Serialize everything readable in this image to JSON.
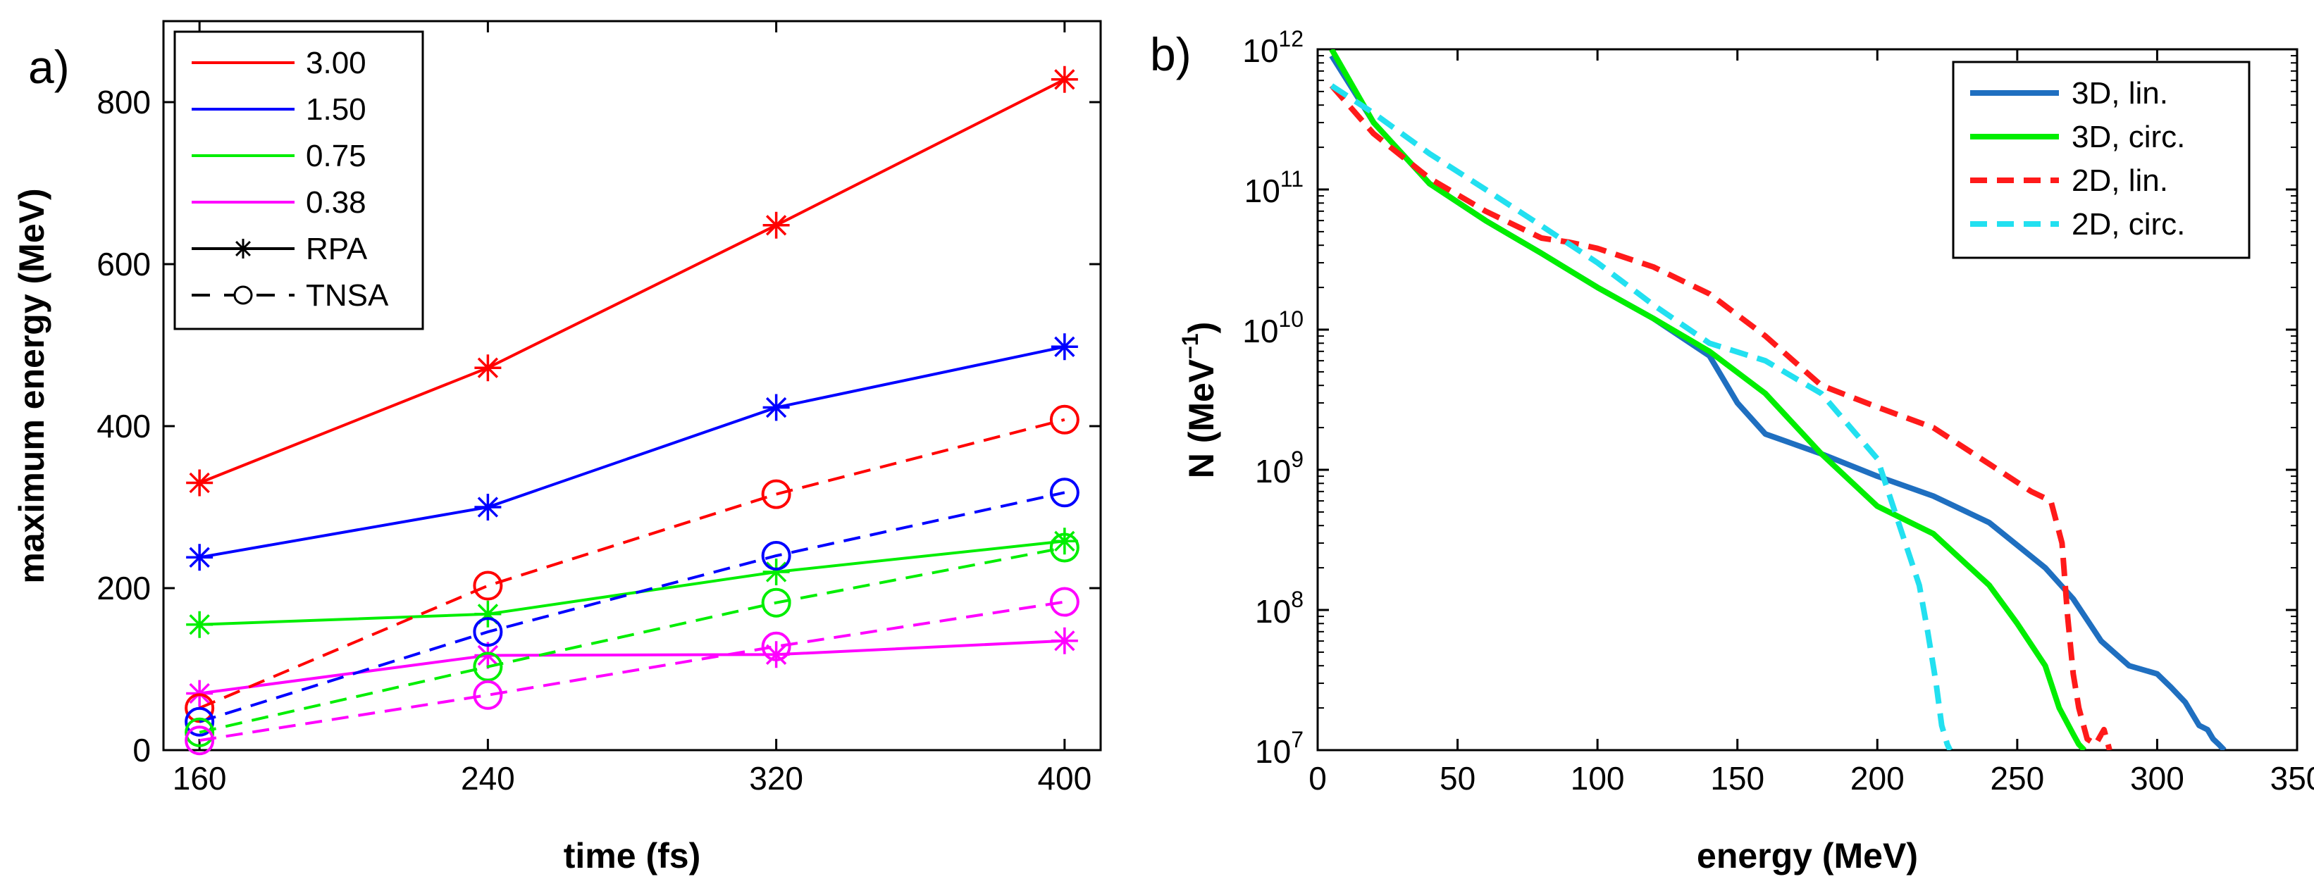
{
  "chart_data": [
    {
      "type": "line",
      "panel_label": "a)",
      "xlabel": "time (fs)",
      "ylabel": "maximum energy (MeV)",
      "xlim": [
        150,
        410
      ],
      "ylim": [
        0,
        900
      ],
      "xticks": [
        160,
        240,
        320,
        400
      ],
      "yticks": [
        0,
        200,
        400,
        600,
        800
      ],
      "legend_position": "top-left",
      "legend": [
        {
          "label": "3.00",
          "color": "#ff0000",
          "style": "solid",
          "marker": ""
        },
        {
          "label": "1.50",
          "color": "#0000ff",
          "style": "solid",
          "marker": ""
        },
        {
          "label": "0.75",
          "color": "#00ee00",
          "style": "solid",
          "marker": ""
        },
        {
          "label": "0.38",
          "color": "#ff00ff",
          "style": "solid",
          "marker": ""
        },
        {
          "label": "RPA",
          "color": "#000000",
          "style": "solid",
          "marker": "star"
        },
        {
          "label": "TNSA",
          "color": "#000000",
          "style": "dashed",
          "marker": "circle"
        }
      ],
      "x": [
        160,
        240,
        320,
        400
      ],
      "series": [
        {
          "name": "3.00 RPA",
          "color": "#ff0000",
          "style": "solid",
          "marker": "star",
          "values": [
            330,
            472,
            648,
            828
          ]
        },
        {
          "name": "1.50 RPA",
          "color": "#0000ff",
          "style": "solid",
          "marker": "star",
          "values": [
            238,
            300,
            423,
            498
          ]
        },
        {
          "name": "0.75 RPA",
          "color": "#00ee00",
          "style": "solid",
          "marker": "star",
          "values": [
            155,
            168,
            220,
            258
          ]
        },
        {
          "name": "0.38 RPA",
          "color": "#ff00ff",
          "style": "solid",
          "marker": "star",
          "values": [
            70,
            117,
            118,
            135
          ]
        },
        {
          "name": "3.00 TNSA",
          "color": "#ff0000",
          "style": "dashed",
          "marker": "circle",
          "values": [
            52,
            203,
            316,
            408
          ]
        },
        {
          "name": "1.50 TNSA",
          "color": "#0000ff",
          "style": "dashed",
          "marker": "circle",
          "values": [
            35,
            146,
            240,
            318
          ]
        },
        {
          "name": "0.75 TNSA",
          "color": "#00ee00",
          "style": "dashed",
          "marker": "circle",
          "values": [
            22,
            103,
            182,
            250
          ]
        },
        {
          "name": "0.38 TNSA",
          "color": "#ff00ff",
          "style": "dashed",
          "marker": "circle",
          "values": [
            12,
            68,
            128,
            183
          ]
        }
      ]
    },
    {
      "type": "line",
      "panel_label": "b)",
      "xlabel": "energy  (MeV)",
      "ylabel": "N (MeV",
      "ylabel_sup": "−1",
      "ylabel_end": ")",
      "xlim": [
        0,
        350
      ],
      "ylim": [
        10000000,
        1000000000000
      ],
      "yscale": "log",
      "xticks": [
        0,
        50,
        100,
        150,
        200,
        250,
        300,
        350
      ],
      "ytick_exponents": [
        7,
        8,
        9,
        10,
        11,
        12
      ],
      "ytick_base": "10",
      "legend_position": "top-right",
      "series": [
        {
          "name": "3D, lin.",
          "color": "#1f6fc0",
          "style": "solid",
          "x": [
            5,
            20,
            40,
            60,
            80,
            100,
            120,
            140,
            150,
            160,
            180,
            200,
            220,
            240,
            260,
            270,
            280,
            290,
            300,
            305,
            310,
            315,
            318,
            320,
            322,
            324
          ],
          "y": [
            900000000000,
            300000000000,
            110000000000,
            60000000000,
            35000000000,
            20000000000,
            12000000000,
            6500000000,
            3000000000,
            1800000000,
            1300000000,
            900000000,
            650000000,
            420000000,
            200000000,
            120000000,
            60000000,
            40000000,
            35000000,
            28000000,
            22000000,
            15000000,
            14000000,
            12000000,
            11000000,
            10000000
          ]
        },
        {
          "name": "3D, circ.",
          "color": "#00ee00",
          "style": "solid",
          "x": [
            5,
            20,
            40,
            60,
            80,
            100,
            120,
            140,
            160,
            180,
            200,
            220,
            240,
            250,
            260,
            265,
            270,
            272,
            274
          ],
          "y": [
            1000000000000,
            300000000000,
            110000000000,
            60000000000,
            35000000000,
            20000000000,
            12000000000,
            7000000000,
            3500000000,
            1300000000,
            550000000,
            350000000,
            150000000,
            80000000,
            40000000,
            20000000,
            13000000,
            11000000,
            10000000
          ]
        },
        {
          "name": "2D, lin.",
          "color": "#ff1a1a",
          "style": "dashed",
          "x": [
            5,
            20,
            40,
            60,
            80,
            90,
            100,
            120,
            140,
            160,
            180,
            200,
            220,
            240,
            255,
            262,
            266,
            268,
            270,
            272,
            275,
            278,
            281,
            283
          ],
          "y": [
            550000000000,
            250000000000,
            120000000000,
            70000000000,
            45000000000,
            42000000000,
            38000000000,
            28000000000,
            18000000000,
            9000000000,
            4000000000,
            2800000000,
            2000000000,
            1100000000,
            700000000,
            600000000,
            300000000,
            90000000,
            35000000,
            20000000,
            12000000,
            11000000,
            14000000,
            10000000
          ]
        },
        {
          "name": "2D, circ.",
          "color": "#22e0f0",
          "style": "dashed",
          "x": [
            5,
            20,
            40,
            60,
            80,
            100,
            120,
            140,
            160,
            180,
            200,
            210,
            215,
            218,
            221,
            223,
            225,
            226
          ],
          "y": [
            550000000000,
            350000000000,
            180000000000,
            100000000000,
            55000000000,
            30000000000,
            15000000000,
            8000000000,
            6000000000,
            3500000000,
            1200000000,
            300000000,
            150000000,
            70000000,
            30000000,
            15000000,
            11000000,
            10000000
          ]
        }
      ]
    }
  ]
}
